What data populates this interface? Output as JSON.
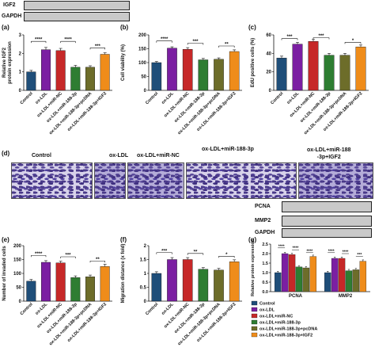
{
  "blots_top": {
    "label_igf2": "IGF2",
    "label_gapdh": "GAPDH"
  },
  "blots_mid": {
    "label_pcna": "PCNA",
    "label_mmp2": "MMP2",
    "label_gapdh": "GAPDH"
  },
  "panel_letters": {
    "a": "(a)",
    "b": "(b)",
    "c": "(c)",
    "d": "(d)",
    "e": "(e)",
    "f": "(f)",
    "g": "(g)"
  },
  "micro_titles": [
    "Control",
    "ox-LDL",
    "ox-LDL+miR-NC",
    "ox-LDL+miR-188-3p",
    "ox-LDL+miR-188\n-3p+IGF2"
  ],
  "colors": {
    "control": "#1f4e79",
    "oxldl": "#7b1fa2",
    "mirnc": "#c62828",
    "mir188": "#2e7d32",
    "pcdna": "#6d6d2a",
    "igf2": "#ef8c1a"
  },
  "chart_data": [
    {
      "id": "a",
      "type": "bar",
      "ylabel": "Relative IGF2\nprotein expression",
      "ylim": [
        0,
        3
      ],
      "yticks": [
        0,
        1,
        2,
        3
      ],
      "categories": [
        "Control",
        "ox-LDL",
        "ox-LDL+miR-NC",
        "ox-LDL+miR-188-3p",
        "ox-LDL+miR-188-3p+pcDNA",
        "ox-LDL+miR-188-3p+IGF2"
      ],
      "values": [
        1.0,
        2.2,
        2.15,
        1.25,
        1.25,
        1.95
      ],
      "errors": [
        0.08,
        0.12,
        0.12,
        0.1,
        0.08,
        0.08
      ],
      "significance": [
        {
          "from": 0,
          "to": 1,
          "label": "****",
          "y": 2.65
        },
        {
          "from": 2,
          "to": 3,
          "label": "****",
          "y": 2.65
        },
        {
          "from": 4,
          "to": 5,
          "label": "***",
          "y": 2.3
        }
      ]
    },
    {
      "id": "b",
      "type": "bar",
      "ylabel": "Cell viability (%)",
      "ylim": [
        0,
        200
      ],
      "yticks": [
        0,
        50,
        100,
        150,
        200
      ],
      "categories": [
        "Control",
        "ox-LDL",
        "ox-LDL+miR-NC",
        "ox-LDL+miR-188-3p",
        "ox-LDL+miR-188-3p+pcDNA",
        "ox-LDL+miR-188-3p+IGF2"
      ],
      "values": [
        100,
        152,
        148,
        110,
        112,
        140
      ],
      "errors": [
        4,
        5,
        6,
        5,
        5,
        6
      ],
      "significance": [
        {
          "from": 0,
          "to": 1,
          "label": "****",
          "y": 178
        },
        {
          "from": 2,
          "to": 3,
          "label": "***",
          "y": 170
        },
        {
          "from": 4,
          "to": 5,
          "label": "**",
          "y": 160
        }
      ]
    },
    {
      "id": "c",
      "type": "bar",
      "ylabel": "EdU positive cells (%)",
      "ylim": [
        0,
        60
      ],
      "yticks": [
        0,
        20,
        40,
        60
      ],
      "categories": [
        "Control",
        "ox-LDL",
        "ox-LDL+miR-NC",
        "ox-LDL+miR-188-3p",
        "ox-LDL+miR-188-3p+pcDNA",
        "ox-LDL+miR-188-3p+IGF2"
      ],
      "values": [
        35,
        50,
        53,
        38,
        38,
        47
      ],
      "errors": [
        2,
        2,
        2,
        2,
        2,
        2
      ],
      "significance": [
        {
          "from": 0,
          "to": 1,
          "label": "***",
          "y": 56
        },
        {
          "from": 2,
          "to": 3,
          "label": "***",
          "y": 57
        },
        {
          "from": 4,
          "to": 5,
          "label": "*",
          "y": 52
        }
      ]
    },
    {
      "id": "e",
      "type": "bar",
      "ylabel": "Number of invaded cells",
      "ylim": [
        0,
        200
      ],
      "yticks": [
        0,
        50,
        100,
        150,
        200
      ],
      "categories": [
        "Control",
        "ox-LDL",
        "ox-LDL+miR-NC",
        "ox-LDL+miR-188-3p",
        "ox-LDL+miR-188-3p+pcDNA",
        "ox-LDL+miR-188-3p+IGF2"
      ],
      "values": [
        72,
        140,
        138,
        85,
        88,
        125
      ],
      "errors": [
        6,
        6,
        6,
        6,
        6,
        8
      ],
      "significance": [
        {
          "from": 0,
          "to": 1,
          "label": "****",
          "y": 165
        },
        {
          "from": 2,
          "to": 3,
          "label": "***",
          "y": 160
        },
        {
          "from": 4,
          "to": 5,
          "label": "**",
          "y": 145
        }
      ]
    },
    {
      "id": "f",
      "type": "bar",
      "ylabel": "Migration distance (x fold)",
      "ylim": [
        0,
        2.0
      ],
      "yticks": [
        0.0,
        0.5,
        1.0,
        1.5,
        2.0
      ],
      "categories": [
        "Control",
        "ox-LDL",
        "ox-LDL+miR-NC",
        "ox-LDL+miR-188-3p",
        "ox-LDL+miR-188-3p+pcDNA",
        "ox-LDL+miR-188-3p+IGF2"
      ],
      "values": [
        1.0,
        1.5,
        1.5,
        1.15,
        1.12,
        1.42
      ],
      "errors": [
        0.06,
        0.07,
        0.07,
        0.06,
        0.06,
        0.07
      ],
      "significance": [
        {
          "from": 0,
          "to": 1,
          "label": "***",
          "y": 1.75
        },
        {
          "from": 2,
          "to": 3,
          "label": "**",
          "y": 1.72
        },
        {
          "from": 4,
          "to": 5,
          "label": "*",
          "y": 1.62
        }
      ]
    },
    {
      "id": "g",
      "type": "bar",
      "ylabel": "Relative protein expression",
      "ylim": [
        0,
        2.5
      ],
      "yticks": [
        0.0,
        0.5,
        1.0,
        1.5,
        2.0,
        2.5
      ],
      "categories": [
        "PCNA",
        "MMP2"
      ],
      "series": [
        {
          "name": "Control",
          "values": [
            1.0,
            1.0
          ]
        },
        {
          "name": "ox-LDL",
          "values": [
            2.0,
            1.75
          ]
        },
        {
          "name": "ox-LDL+miR-NC",
          "values": [
            1.95,
            1.75
          ]
        },
        {
          "name": "ox-LDL+miR-188-3p",
          "values": [
            1.3,
            1.1
          ]
        },
        {
          "name": "ox-LDL+miR-188-3p+pcDNA",
          "values": [
            1.25,
            1.15
          ]
        },
        {
          "name": "ox-LDL+miR-188-3p+IGF2",
          "values": [
            1.85,
            1.6
          ]
        }
      ],
      "significance": [
        {
          "group": 0,
          "from": 0,
          "to": 1,
          "label": "****",
          "y": 2.3
        },
        {
          "group": 0,
          "from": 2,
          "to": 3,
          "label": "****",
          "y": 2.2
        },
        {
          "group": 0,
          "from": 4,
          "to": 5,
          "label": "****",
          "y": 2.05
        },
        {
          "group": 1,
          "from": 0,
          "to": 1,
          "label": "****",
          "y": 2.05
        },
        {
          "group": 1,
          "from": 2,
          "to": 3,
          "label": "****",
          "y": 2.0
        },
        {
          "group": 1,
          "from": 4,
          "to": 5,
          "label": "***",
          "y": 1.85
        }
      ],
      "legend_placement": "bottom"
    }
  ]
}
